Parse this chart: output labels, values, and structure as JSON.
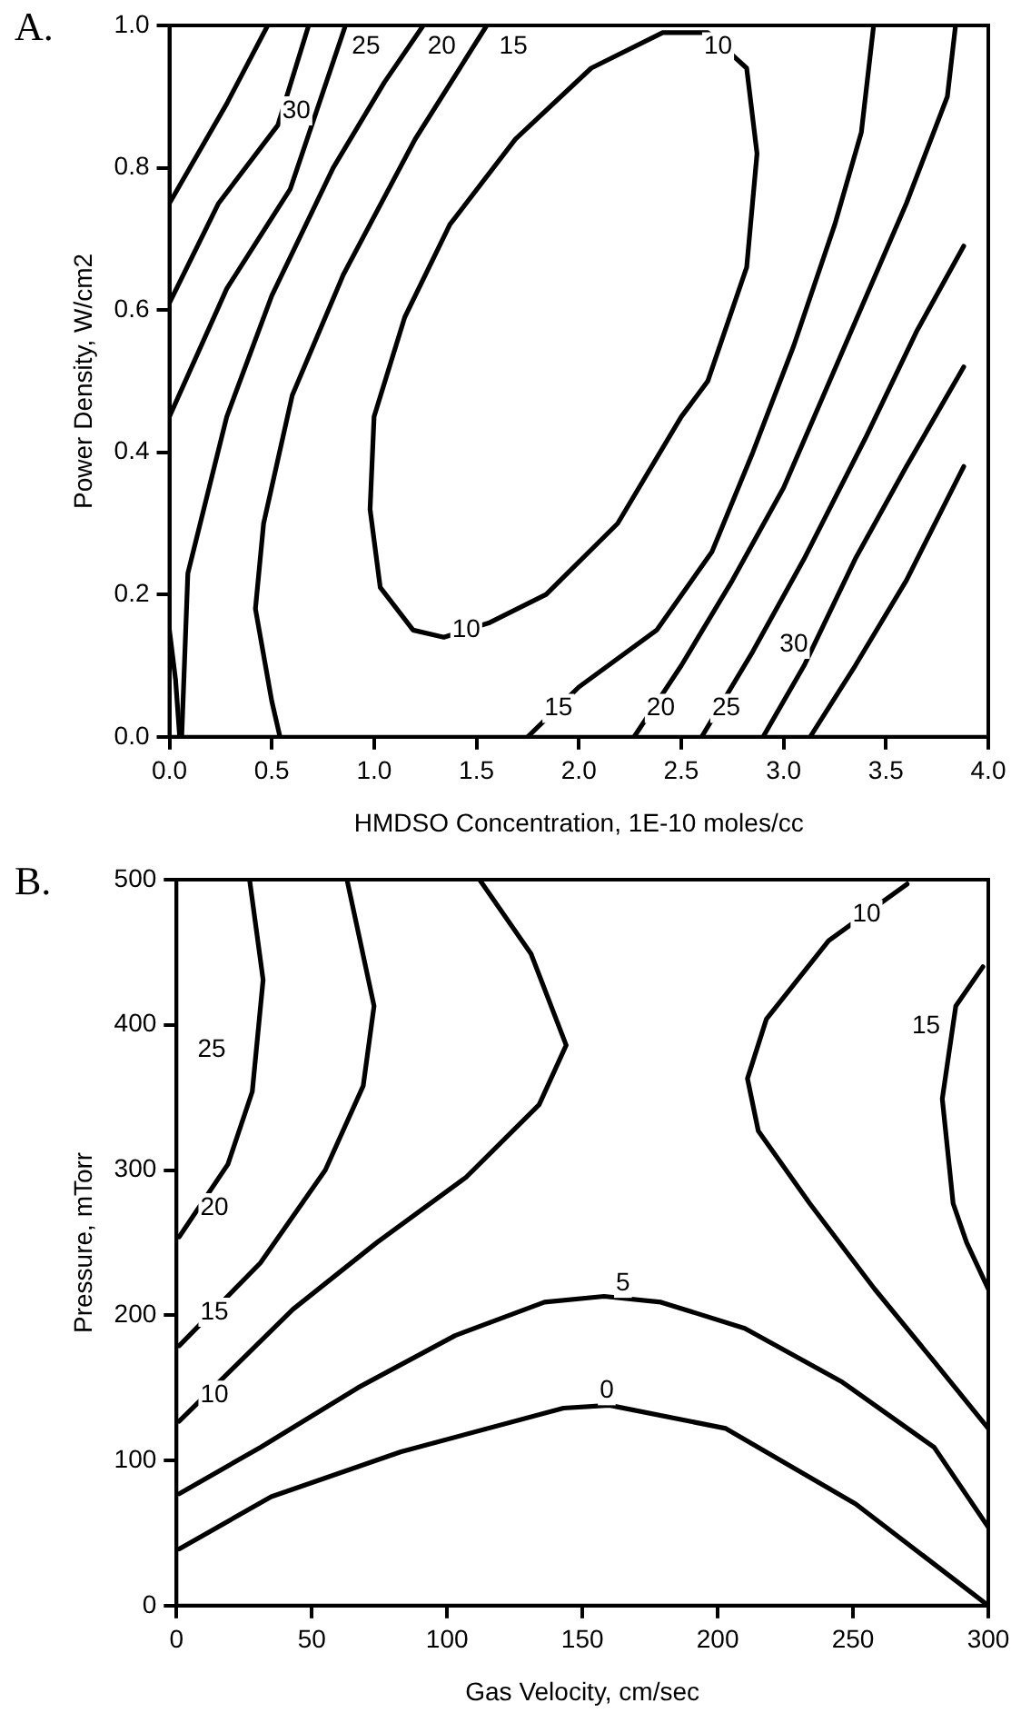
{
  "chart_data": [
    {
      "type": "line",
      "title": "A.",
      "xlabel": "HMDSO Concentration, 1E-10 moles/cc",
      "ylabel": "Power Density, W/cm2",
      "xlim": [
        0,
        4
      ],
      "ylim": [
        0,
        1
      ],
      "xticks": [
        {
          "value": 0,
          "label": "0.0"
        },
        {
          "value": 0.5,
          "label": "0.5"
        },
        {
          "value": 1,
          "label": "1.0"
        },
        {
          "value": 1.5,
          "label": "1.5"
        },
        {
          "value": 2,
          "label": "2.0"
        },
        {
          "value": 2.5,
          "label": "2.5"
        },
        {
          "value": 3,
          "label": "3.0"
        },
        {
          "value": 3.5,
          "label": "3.5"
        },
        {
          "value": 4,
          "label": "4.0"
        }
      ],
      "yticks": [
        {
          "value": 0,
          "label": "0.0"
        },
        {
          "value": 0.2,
          "label": "0.2"
        },
        {
          "value": 0.4,
          "label": "0.4"
        },
        {
          "value": 0.6,
          "label": "0.6"
        },
        {
          "value": 0.8,
          "label": "0.8"
        },
        {
          "value": 1,
          "label": "1.0"
        }
      ],
      "grid": false,
      "legend": false,
      "marker": "none",
      "line_style": "solid",
      "series": [
        {
          "color": "#000000",
          "x": [
            0,
            0.1,
            0.28,
            0.48
          ],
          "values": [
            0.75,
            0.8,
            0.89,
            1.0
          ]
        },
        {
          "color": "#000000",
          "x": [
            0,
            0.24,
            0.53,
            0.68
          ],
          "values": [
            0.61,
            0.75,
            0.86,
            1.0
          ]
        },
        {
          "color": "#000000",
          "x": [
            0,
            0.28,
            0.59,
            0.86
          ],
          "values": [
            0.45,
            0.63,
            0.77,
            1.0
          ]
        },
        {
          "color": "#000000",
          "x": [
            0.06,
            0.09,
            0.28,
            0.5,
            0.8,
            1.05,
            1.24
          ],
          "values": [
            0,
            0.23,
            0.45,
            0.62,
            0.8,
            0.92,
            1.0
          ]
        },
        {
          "color": "#000000",
          "x": [
            0,
            0.03,
            0.05
          ],
          "values": [
            0.15,
            0.08,
            0
          ]
        },
        {
          "color": "#000000",
          "x": [
            0.54,
            0.5,
            0.42,
            0.46,
            0.6,
            0.85,
            1.2,
            1.55
          ],
          "values": [
            0,
            0.05,
            0.18,
            0.3,
            0.48,
            0.65,
            0.84,
            1.0
          ]
        },
        {
          "color": "#000000",
          "x": [
            1.75,
            2.0,
            2.38,
            2.65,
            2.85,
            3.05,
            3.25,
            3.38,
            3.44
          ],
          "values": [
            0,
            0.07,
            0.15,
            0.26,
            0.4,
            0.55,
            0.72,
            0.85,
            1.0
          ]
        },
        {
          "color": "#000000",
          "x": [
            2.27,
            2.5,
            2.75,
            3.0,
            3.3,
            3.6,
            3.8,
            3.84
          ],
          "values": [
            0,
            0.1,
            0.22,
            0.35,
            0.55,
            0.75,
            0.9,
            1.0
          ]
        },
        {
          "color": "#000000",
          "x": [
            2.6,
            2.85,
            3.1,
            3.4,
            3.65,
            3.88
          ],
          "values": [
            0,
            0.12,
            0.25,
            0.42,
            0.57,
            0.69
          ]
        },
        {
          "color": "#000000",
          "x": [
            2.9,
            3.1,
            3.35,
            3.6,
            3.88
          ],
          "values": [
            0,
            0.1,
            0.25,
            0.38,
            0.52
          ]
        },
        {
          "color": "#000000",
          "x": [
            3.13,
            3.35,
            3.6,
            3.88
          ],
          "values": [
            0,
            0.1,
            0.22,
            0.38
          ]
        }
      ],
      "annotations": [
        {
          "text": "30",
          "x": 0.62,
          "y": 0.88
        },
        {
          "text": "25",
          "x": 0.96,
          "y": 0.97
        },
        {
          "text": "20",
          "x": 1.33,
          "y": 0.97
        },
        {
          "text": "15",
          "x": 1.68,
          "y": 0.97
        },
        {
          "text": "10",
          "x": 2.68,
          "y": 0.97
        },
        {
          "text": "10",
          "x": 1.45,
          "y": 0.15
        },
        {
          "text": "15",
          "x": 1.9,
          "y": 0.04
        },
        {
          "text": "20",
          "x": 2.4,
          "y": 0.04
        },
        {
          "text": "25",
          "x": 2.72,
          "y": 0.04
        },
        {
          "text": "30",
          "x": 3.05,
          "y": 0.13
        }
      ]
    },
    {
      "type": "line",
      "title": "B.",
      "xlabel": "Gas Velocity, cm/sec",
      "ylabel": "Pressure, mTorr",
      "xlim": [
        0,
        300
      ],
      "ylim": [
        0,
        500
      ],
      "xticks": [
        0,
        50,
        100,
        150,
        200,
        250,
        300
      ],
      "yticks": [
        0,
        100,
        200,
        300,
        400,
        500
      ],
      "grid": false,
      "legend": false,
      "marker": "none",
      "line_style": "solid",
      "series": [
        {
          "color": "#000000",
          "x": [
            27,
            32,
            28,
            19,
            1
          ],
          "values": [
            500,
            431,
            354,
            304,
            254
          ]
        },
        {
          "color": "#000000",
          "x": [
            63,
            73,
            69,
            55,
            31,
            1
          ],
          "values": [
            500,
            413,
            358,
            300,
            236,
            179
          ]
        },
        {
          "color": "#000000",
          "x": [
            112,
            131,
            144,
            134,
            107,
            74,
            43,
            1
          ],
          "values": [
            500,
            449,
            386,
            345,
            295,
            250,
            204,
            127
          ]
        },
        {
          "color": "#000000",
          "x": [
            270,
            241,
            218,
            211,
            215,
            234,
            258,
            280,
            300
          ],
          "values": [
            497,
            458,
            404,
            363,
            327,
            277,
            218,
            168,
            122
          ]
        },
        {
          "color": "#000000",
          "x": [
            298,
            288,
            283,
            287,
            292,
            300
          ],
          "values": [
            440,
            413,
            349,
            277,
            250,
            218
          ]
        },
        {
          "color": "#000000",
          "x": [
            1,
            31,
            67,
            103,
            136,
            158,
            179,
            210,
            246,
            280,
            300
          ],
          "values": [
            77,
            109,
            150,
            186,
            209,
            213,
            209,
            191,
            154,
            109,
            54
          ]
        },
        {
          "color": "#000000",
          "x": [
            1,
            35,
            83,
            143,
            160,
            203,
            251,
            300
          ],
          "values": [
            39,
            75,
            106,
            136,
            138,
            122,
            70,
            0
          ]
        }
      ],
      "annotations": [
        {
          "text": "25",
          "x": 13,
          "y": 383
        },
        {
          "text": "20",
          "x": 14,
          "y": 274
        },
        {
          "text": "15",
          "x": 14,
          "y": 202
        },
        {
          "text": "10",
          "x": 14,
          "y": 145
        },
        {
          "text": "10",
          "x": 255,
          "y": 476
        },
        {
          "text": "15",
          "x": 277,
          "y": 399
        },
        {
          "text": "5",
          "x": 165,
          "y": 222
        },
        {
          "text": "0",
          "x": 159,
          "y": 148
        }
      ]
    }
  ]
}
